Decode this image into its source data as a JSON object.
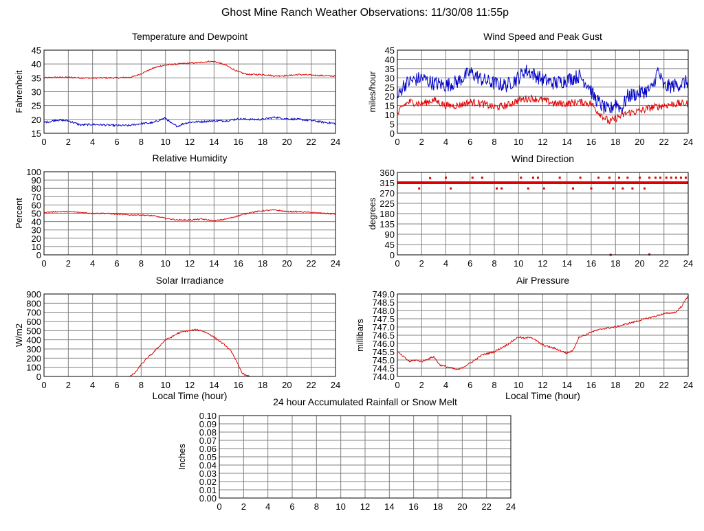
{
  "page": {
    "title": "Ghost Mine Ranch Weather Observations: 11/30/08 11:55p"
  },
  "colors": {
    "grid": "#808080",
    "frame": "#000000",
    "red": "#e00000",
    "blue": "#0000c8",
    "background": "#ffffff"
  },
  "chart_data": [
    {
      "id": "temp",
      "type": "line",
      "title": "Temperature and Dewpoint",
      "ylabel": "Fahrenheit",
      "xlabel": "",
      "xlim": [
        0,
        24
      ],
      "ylim": [
        15,
        45
      ],
      "xticks": [
        0,
        2,
        4,
        6,
        8,
        10,
        12,
        14,
        16,
        18,
        20,
        22,
        24
      ],
      "yticks": [
        15,
        20,
        25,
        30,
        35,
        40,
        45
      ],
      "series": [
        {
          "name": "Temperature",
          "color": "red",
          "noise": 0.25,
          "x": [
            0,
            1,
            2,
            3,
            4,
            5,
            6,
            7,
            7.5,
            8,
            8.5,
            9,
            9.5,
            10,
            11,
            12,
            13,
            13.5,
            14,
            14.5,
            15,
            15.5,
            16,
            16.5,
            17,
            18,
            19,
            20,
            21,
            22,
            23,
            24
          ],
          "y": [
            35,
            35.2,
            35.2,
            35,
            34.9,
            35,
            35,
            35.2,
            35.6,
            36.5,
            37.5,
            38.5,
            39.2,
            39.6,
            40,
            40.3,
            40.6,
            40.9,
            40.9,
            40.3,
            39.5,
            38.3,
            37.2,
            36.5,
            36.2,
            36.2,
            35.7,
            35.8,
            36.2,
            36,
            35.8,
            35.6
          ]
        },
        {
          "name": "Dewpoint",
          "color": "blue",
          "noise": 0.35,
          "x": [
            0,
            0.5,
            1,
            2,
            3,
            4,
            5,
            6,
            7,
            8,
            9,
            9.5,
            10,
            10.5,
            11,
            11.5,
            12,
            13,
            14,
            15,
            16,
            17,
            18,
            19,
            20,
            21,
            22,
            23,
            24
          ],
          "y": [
            19,
            19.2,
            19.8,
            19.5,
            18,
            18.2,
            18,
            17.8,
            17.8,
            18.5,
            18.8,
            19.8,
            20.5,
            18.5,
            17.5,
            18.5,
            19,
            19.2,
            19.5,
            19.5,
            20.2,
            20,
            20,
            20.8,
            20.2,
            20,
            19.6,
            19,
            18.5
          ]
        }
      ]
    },
    {
      "id": "wind",
      "type": "line",
      "title": "Wind Speed and Peak Gust",
      "ylabel": "miles/hour",
      "xlabel": "",
      "xlim": [
        0,
        24
      ],
      "ylim": [
        0,
        45
      ],
      "xticks": [
        0,
        2,
        4,
        6,
        8,
        10,
        12,
        14,
        16,
        18,
        20,
        22,
        24
      ],
      "yticks": [
        0,
        5,
        10,
        15,
        20,
        25,
        30,
        35,
        40,
        45
      ],
      "series": [
        {
          "name": "Peak Gust",
          "color": "blue",
          "noise": 4,
          "x": [
            0,
            0.5,
            1,
            2,
            3,
            4,
            5,
            6,
            7,
            8,
            9,
            10,
            10.5,
            11,
            12,
            13,
            14,
            15,
            15.8,
            16.2,
            17,
            17.5,
            18,
            18.5,
            19,
            20,
            21,
            21.5,
            22,
            23,
            24
          ],
          "y": [
            19,
            26,
            28,
            30,
            27,
            26,
            28,
            33,
            29,
            27,
            26,
            30,
            34,
            33,
            29,
            27,
            29,
            31,
            26,
            20,
            14,
            12,
            17,
            13,
            20,
            22,
            24,
            34,
            25,
            26,
            28
          ]
        },
        {
          "name": "Wind Speed",
          "color": "red",
          "noise": 2,
          "x": [
            0,
            0.5,
            1,
            2,
            3,
            4,
            5,
            6,
            7,
            8,
            9,
            10,
            11,
            12,
            13,
            14,
            15,
            16,
            16.5,
            17,
            17.5,
            18,
            19,
            20,
            21,
            22,
            23,
            24
          ],
          "y": [
            10,
            15,
            17,
            16,
            18,
            15,
            15,
            17,
            16,
            14,
            15,
            18,
            19,
            18,
            16,
            16,
            17,
            16,
            12,
            9,
            6,
            8,
            11,
            12,
            14,
            15,
            16,
            16
          ]
        }
      ]
    },
    {
      "id": "rh",
      "type": "line",
      "title": "Relative Humidity",
      "ylabel": "Percent",
      "xlabel": "",
      "xlim": [
        0,
        24
      ],
      "ylim": [
        0,
        100
      ],
      "xticks": [
        0,
        2,
        4,
        6,
        8,
        10,
        12,
        14,
        16,
        18,
        20,
        22,
        24
      ],
      "yticks": [
        0,
        10,
        20,
        30,
        40,
        50,
        60,
        70,
        80,
        90,
        100
      ],
      "series": [
        {
          "name": "Relative Humidity",
          "color": "red",
          "noise": 0.7,
          "x": [
            0,
            1,
            2,
            3,
            4,
            5,
            6,
            7,
            8,
            9,
            10,
            11,
            12,
            13,
            14,
            15,
            16,
            17,
            18,
            19,
            20,
            21,
            22,
            23,
            24
          ],
          "y": [
            51,
            52,
            52,
            51,
            50,
            50,
            49,
            48,
            48,
            47,
            44,
            42,
            42,
            43,
            41,
            43,
            47,
            51,
            53,
            54,
            52,
            52,
            51,
            50,
            49
          ]
        }
      ]
    },
    {
      "id": "wdir",
      "type": "scatter",
      "title": "Wind Direction",
      "ylabel": "degrees",
      "xlabel": "",
      "xlim": [
        0,
        24
      ],
      "ylim": [
        0,
        360
      ],
      "xticks": [
        0,
        2,
        4,
        6,
        8,
        10,
        12,
        14,
        16,
        18,
        20,
        22,
        24
      ],
      "yticks": [
        0,
        45,
        90,
        135,
        180,
        225,
        270,
        315,
        360
      ],
      "series": [
        {
          "name": "Direction",
          "color": "red",
          "band": {
            "y": 315,
            "x0": 0,
            "x1": 24
          },
          "x": [
            1.8,
            2.7,
            4,
            4.4,
            6.2,
            7,
            8.2,
            8.6,
            10.2,
            10.8,
            11.2,
            11.6,
            12.1,
            13.4,
            14.5,
            15.1,
            16,
            16.6,
            17.5,
            17.8,
            18.3,
            18.6,
            19,
            19.4,
            20,
            20.4,
            20.8,
            21.3,
            21.7,
            22.2,
            22.6,
            23,
            23.4,
            23.8,
            17.6,
            20.8
          ],
          "y": [
            290,
            335,
            337,
            290,
            337,
            337,
            290,
            290,
            337,
            290,
            337,
            337,
            290,
            337,
            290,
            337,
            290,
            337,
            337,
            290,
            337,
            290,
            337,
            290,
            337,
            290,
            337,
            337,
            337,
            337,
            337,
            337,
            337,
            337,
            0,
            2
          ]
        }
      ]
    },
    {
      "id": "solar",
      "type": "area",
      "title": "Solar Irradiance",
      "ylabel": "W/m2",
      "xlabel": "Local Time (hour)",
      "xlim": [
        0,
        24
      ],
      "ylim": [
        0,
        900
      ],
      "xticks": [
        0,
        2,
        4,
        6,
        8,
        10,
        12,
        14,
        16,
        18,
        20,
        22,
        24
      ],
      "yticks": [
        0,
        100,
        200,
        300,
        400,
        500,
        600,
        700,
        800,
        900
      ],
      "series": [
        {
          "name": "Solar Irradiance",
          "color": "red",
          "noise": 8,
          "x": [
            0,
            7,
            7.2,
            7.5,
            8,
            8.5,
            9,
            9.5,
            10,
            10.5,
            11,
            11.5,
            12,
            12.5,
            13,
            13.5,
            14,
            14.5,
            15,
            15.5,
            16,
            16.3,
            16.7,
            17,
            24
          ],
          "y": [
            0,
            0,
            10,
            40,
            130,
            200,
            260,
            330,
            400,
            430,
            470,
            490,
            500,
            510,
            500,
            470,
            430,
            380,
            330,
            260,
            120,
            40,
            5,
            0,
            0
          ]
        }
      ]
    },
    {
      "id": "press",
      "type": "line",
      "title": "Air Pressure",
      "ylabel": "millibars",
      "xlabel": "Local Time (hour)",
      "xlim": [
        0,
        24
      ],
      "ylim": [
        744.0,
        749.0
      ],
      "xticks": [
        0,
        2,
        4,
        6,
        8,
        10,
        12,
        14,
        16,
        18,
        20,
        22,
        24
      ],
      "yticks": [
        "744.0",
        "744.5",
        "745.0",
        "745.5",
        "746.0",
        "746.5",
        "747.0",
        "747.5",
        "748.0",
        "748.5",
        "749.0"
      ],
      "series": [
        {
          "name": "Air Pressure",
          "color": "red",
          "noise": 0.05,
          "x": [
            0,
            0.5,
            1,
            1.5,
            2,
            3,
            3.5,
            4,
            5,
            6,
            7,
            8,
            9,
            10,
            10.5,
            11,
            12,
            13,
            14,
            14.5,
            15,
            15.5,
            16,
            17,
            18,
            19,
            20,
            21,
            22,
            23,
            23.5,
            24
          ],
          "y": [
            745.5,
            745.2,
            744.9,
            745,
            744.9,
            745.2,
            744.7,
            744.6,
            744.4,
            744.8,
            745.3,
            745.5,
            745.9,
            746.4,
            746.3,
            746.4,
            745.9,
            745.7,
            745.4,
            745.6,
            746.4,
            746.5,
            746.7,
            746.9,
            747.0,
            747.2,
            747.4,
            747.6,
            747.8,
            747.9,
            748.3,
            748.9
          ]
        }
      ]
    },
    {
      "id": "rain",
      "type": "line",
      "title": "24 hour Accumulated Rainfall or Snow Melt",
      "ylabel": "Inches",
      "xlabel": "",
      "xlim": [
        0,
        24
      ],
      "ylim": [
        0,
        0.1
      ],
      "xticks": [
        0,
        2,
        4,
        6,
        8,
        10,
        12,
        14,
        16,
        18,
        20,
        22,
        24
      ],
      "yticks": [
        "0.00",
        "0.01",
        "0.02",
        "0.03",
        "0.04",
        "0.05",
        "0.06",
        "0.07",
        "0.08",
        "0.09",
        "0.10"
      ],
      "series": [
        {
          "name": "Rainfall",
          "color": "red",
          "noise": 0,
          "x": [
            0,
            24
          ],
          "y": [
            0,
            0
          ]
        }
      ]
    }
  ]
}
